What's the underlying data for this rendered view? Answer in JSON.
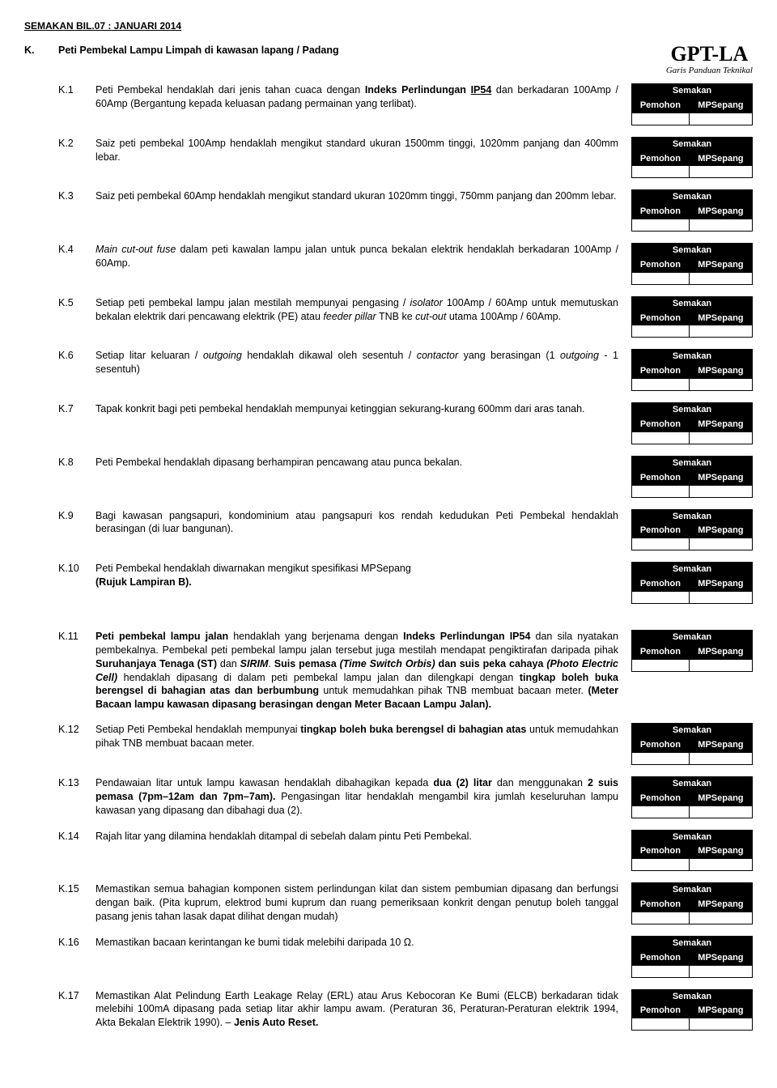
{
  "header": {
    "revision": "SEMAKAN BIL.07 : JANUARI 2014",
    "section_letter": "K.",
    "section_title": "Peti Pembekal Lampu Limpah di kawasan lapang / Padang",
    "logo_main": "GPT-LA",
    "logo_sub": "Garis Panduan Teknikal"
  },
  "semakan": {
    "title": "Semakan",
    "col1": "Pemohon",
    "col2": "MPSepang"
  },
  "items": [
    {
      "num": "K.1",
      "html": "Peti Pembekal hendaklah dari jenis tahan cuaca dengan <b>Indeks Perlindungan <u>IP54</u></b> dan berkadaran 100Amp / 60Amp (Bergantung kepada keluasan padang permainan yang terlibat)."
    },
    {
      "num": "K.2",
      "html": "Saiz peti pembekal 100Amp hendaklah mengikut standard ukuran 1500mm tinggi, 1020mm panjang dan 400mm lebar."
    },
    {
      "num": "K.3",
      "html": "Saiz peti pembekal 60Amp hendaklah mengikut standard ukuran 1020mm tinggi, 750mm panjang dan 200mm lebar."
    },
    {
      "num": "K.4",
      "html": "<i>Main cut-out fuse</i> dalam peti kawalan lampu jalan untuk punca bekalan elektrik hendaklah berkadaran 100Amp / 60Amp."
    },
    {
      "num": "K.5",
      "html": "Setiap peti pembekal lampu jalan mestilah mempunyai pengasing / <i>isolator</i> 100Amp / 60Amp untuk memutuskan bekalan elektrik dari pencawang elektrik (PE) atau <i>feeder pillar</i> TNB ke <i>cut-out</i> utama 100Amp / 60Amp."
    },
    {
      "num": "K.6",
      "html": "Setiap litar keluaran / <i>outgoing</i> hendaklah dikawal oleh sesentuh / <i>contactor</i> yang berasingan (1 <i>outgoing</i> - 1 sesentuh)"
    },
    {
      "num": "K.7",
      "html": "Tapak konkrit bagi peti pembekal hendaklah mempunyai ketinggian sekurang-kurang 600mm dari aras tanah."
    },
    {
      "num": "K.8",
      "html": "Peti Pembekal hendaklah dipasang berhampiran pencawang atau punca bekalan."
    },
    {
      "num": "K.9",
      "html": "Bagi kawasan pangsapuri, kondominium atau pangsapuri kos rendah kedudukan Peti Pembekal hendaklah berasingan (di luar bangunan)."
    },
    {
      "num": "K.10",
      "html": "Peti Pembekal hendaklah diwarnakan mengikut spesifikasi MPSepang<br><b>(Rujuk Lampiran B).</b>"
    },
    {
      "num": "K.11",
      "html": "<b>Peti pembekal lampu jalan</b> hendaklah yang berjenama dengan <b>Indeks Perlindungan IP54</b> dan sila nyatakan pembekalnya. Pembekal peti pembekal lampu jalan tersebut juga mestilah mendapat pengiktirafan daripada pihak <b>Suruhanjaya Tenaga (ST)</b> dan <b><i>SIRIM</i></b>. <b>Suis pemasa <i>(Time Switch Orbis)</i> dan suis peka cahaya <i>(Photo Electric Cell)</i></b> hendaklah dipasang di dalam peti pembekal lampu jalan dan dilengkapi dengan <b>tingkap boleh buka berengsel di bahagian atas dan berbumbung</b> untuk memudahkan pihak TNB membuat bacaan meter. <b>(Meter Bacaan lampu kawasan dipasang berasingan dengan Meter Bacaan Lampu Jalan).</b>",
      "gap_before": true
    },
    {
      "num": "K.12",
      "html": "Setiap Peti Pembekal hendaklah mempunyai <b>tingkap boleh buka berengsel di bahagian atas</b> untuk memudahkan pihak TNB membuat bacaan meter."
    },
    {
      "num": "K.13",
      "html": "Pendawaian litar untuk lampu kawasan hendaklah dibahagikan kepada <b>dua (2) litar</b> dan menggunakan <b>2 suis pemasa (7pm–12am dan 7pm–7am).</b> Pengasingan litar hendaklah mengambil kira jumlah keseluruhan lampu kawasan yang dipasang dan dibahagi dua (2)."
    },
    {
      "num": "K.14",
      "html": "Rajah litar yang dilamina hendaklah ditampal di sebelah dalam pintu Peti Pembekal."
    },
    {
      "num": "K.15",
      "html": "Memastikan semua bahagian komponen sistem perlindungan kilat dan sistem pembumian dipasang dan berfungsi dengan baik. (Pita kuprum, elektrod bumi kuprum dan ruang pemeriksaan konkrit dengan penutup boleh tanggal pasang jenis tahan lasak dapat dilihat dengan mudah)"
    },
    {
      "num": "K.16",
      "html": "Memastikan bacaan kerintangan ke bumi tidak melebihi daripada 10 Ω."
    },
    {
      "num": "K.17",
      "html": "Memastikan Alat Pelindung Earth Leakage Relay (ERL) atau Arus Kebocoran Ke Bumi (ELCB) berkadaran tidak melebihi 100mA dipasang pada setiap litar akhir lampu awam. (Peraturan 36, Peraturan-Peraturan elektrik 1994, Akta Bekalan Elektrik 1990). – <b>Jenis Auto Reset.</b>"
    }
  ]
}
